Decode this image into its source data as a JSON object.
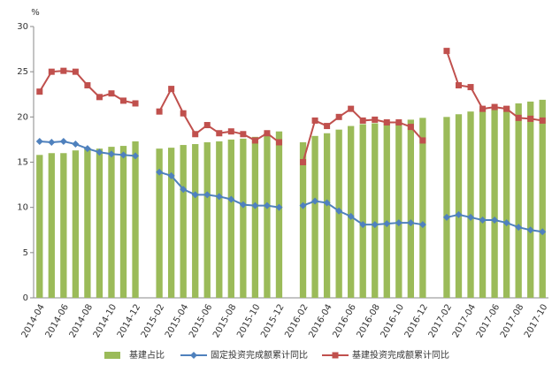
{
  "chart_data": {
    "type": "bar-line",
    "y_unit": "%",
    "categories": [
      "2014-04",
      null,
      "2014-06",
      null,
      "2014-08",
      null,
      "2014-10",
      null,
      "2014-12",
      null,
      "2015-02",
      null,
      "2015-04",
      null,
      "2015-06",
      null,
      "2015-08",
      null,
      "2015-10",
      null,
      "2015-12",
      null,
      "2016-02",
      null,
      "2016-04",
      null,
      "2016-06",
      null,
      "2016-08",
      null,
      "2016-10",
      null,
      "2016-12",
      null,
      "2017-02",
      null,
      "2017-04",
      null,
      "2017-06",
      null,
      "2017-08",
      null,
      "2017-10"
    ],
    "series": [
      {
        "name": "基建占比",
        "type": "bar",
        "color": "#9bbb59",
        "values": [
          15.8,
          16.0,
          16.0,
          16.3,
          16.5,
          16.5,
          16.7,
          16.8,
          17.3,
          null,
          16.5,
          16.6,
          16.9,
          17.0,
          17.2,
          17.3,
          17.5,
          17.6,
          17.8,
          18.2,
          18.4,
          null,
          17.2,
          17.9,
          18.2,
          18.6,
          19.0,
          19.2,
          19.3,
          19.4,
          19.5,
          19.7,
          19.9,
          null,
          20.0,
          20.3,
          20.6,
          20.9,
          21.1,
          21.2,
          21.5,
          21.7,
          21.9
        ]
      },
      {
        "name": "固定投资完成额累计同比",
        "type": "line",
        "marker": "diamond",
        "color": "#4f81bd",
        "values": [
          17.3,
          17.2,
          17.3,
          17.0,
          16.5,
          16.1,
          15.9,
          15.8,
          15.7,
          null,
          13.9,
          13.5,
          12.0,
          11.4,
          11.4,
          11.2,
          10.9,
          10.3,
          10.2,
          10.2,
          10.0,
          null,
          10.2,
          10.7,
          10.5,
          9.6,
          9.0,
          8.1,
          8.1,
          8.2,
          8.3,
          8.3,
          8.1,
          null,
          8.9,
          9.2,
          8.9,
          8.6,
          8.6,
          8.3,
          7.8,
          7.5,
          7.3
        ]
      },
      {
        "name": "基建投资完成额累计同比",
        "type": "line",
        "marker": "square",
        "color": "#c0504d",
        "values": [
          22.8,
          25.0,
          25.1,
          25.0,
          23.5,
          22.2,
          22.6,
          21.8,
          21.5,
          null,
          20.6,
          23.1,
          20.4,
          18.1,
          19.1,
          18.2,
          18.4,
          18.1,
          17.4,
          18.2,
          17.2,
          null,
          15.0,
          19.6,
          19.0,
          20.0,
          20.9,
          19.6,
          19.7,
          19.4,
          19.4,
          18.9,
          17.4,
          null,
          27.3,
          23.5,
          23.3,
          20.9,
          21.1,
          20.9,
          19.9,
          19.8,
          19.6
        ]
      }
    ],
    "ylim": [
      0,
      30
    ],
    "yticks": [
      0,
      5,
      10,
      15,
      20,
      25,
      30
    ],
    "grid": false,
    "legend": "bottom"
  }
}
